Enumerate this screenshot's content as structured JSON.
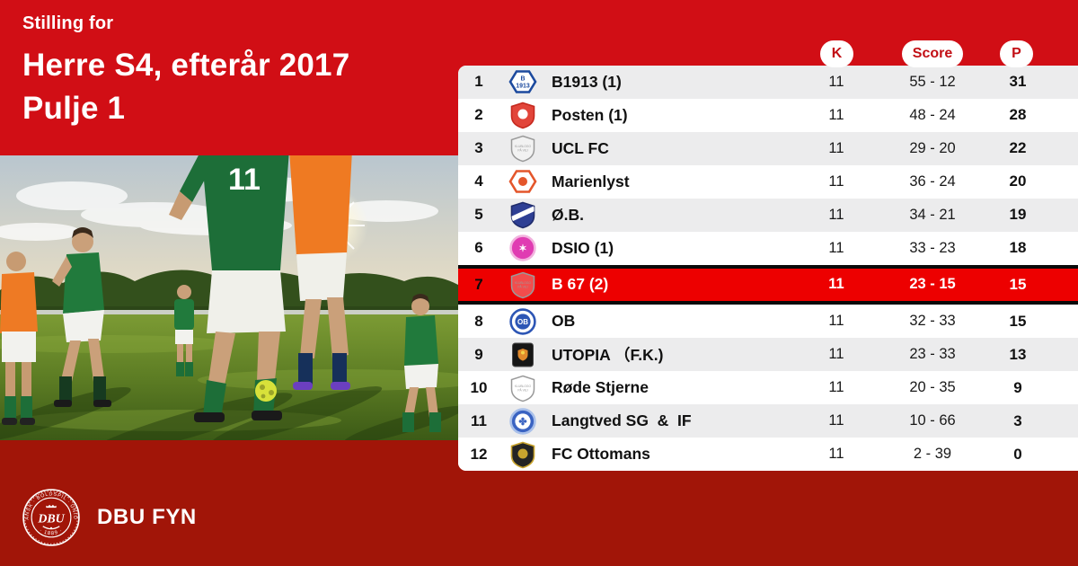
{
  "colors": {
    "red_top": "#d10e15",
    "red_bottom": "#a11508",
    "red_highlight": "#ed0000",
    "row_alt_gray": "#ececed",
    "pill_text_red": "#c20f15",
    "black_border": "#0a0a0a"
  },
  "header": {
    "eyebrow": "Stilling for",
    "title_line1": "Herre S4, efterår 2017",
    "title_line2": "Pulje 1"
  },
  "photo": {
    "jersey_number": "11"
  },
  "table": {
    "columns": {
      "k": "K",
      "score": "Score",
      "p": "P"
    },
    "rows": [
      {
        "pos": "1",
        "team": "B1913 (1)",
        "k": "11",
        "score": "55 - 12",
        "p": "31",
        "highlight": false,
        "logo": {
          "kind": "hex",
          "bg": "#ffffff",
          "border": "#1c4a9e",
          "lines": [
            "B",
            "1913"
          ],
          "text_color": "#1c4a9e"
        }
      },
      {
        "pos": "2",
        "team": "Posten (1)",
        "k": "11",
        "score": "48 - 24",
        "p": "28",
        "highlight": false,
        "logo": {
          "kind": "shield",
          "bg": "#e2453a",
          "border": "#c5291e",
          "dot": "#ffffff"
        }
      },
      {
        "pos": "3",
        "team": "UCL FC",
        "k": "11",
        "score": "29 - 20",
        "p": "22",
        "highlight": false,
        "logo": {
          "kind": "placeholder",
          "lines": [
            "KLUBLOGO",
            "PÅ VEJ"
          ]
        }
      },
      {
        "pos": "4",
        "team": "Marienlyst",
        "k": "11",
        "score": "36 - 24",
        "p": "20",
        "highlight": false,
        "logo": {
          "kind": "hex",
          "bg": "#ffffff",
          "border": "#e4562b",
          "dot": "#e4562b"
        }
      },
      {
        "pos": "5",
        "team": "Ø.B.",
        "k": "11",
        "score": "34 - 21",
        "p": "19",
        "highlight": false,
        "logo": {
          "kind": "shield",
          "bg": "#2e3f94",
          "border": "#202c6b",
          "stripe": "#ffffff"
        }
      },
      {
        "pos": "6",
        "team": "DSIO (1)",
        "k": "11",
        "score": "33 - 23",
        "p": "18",
        "highlight": false,
        "logo": {
          "kind": "circle",
          "bg": "#e03cb2",
          "ring": "#f2b3de",
          "glyph": "✶",
          "glyph_color": "#ffffff"
        }
      },
      {
        "pos": "7",
        "team": "B 67 (2)",
        "k": "11",
        "score": "23 - 15",
        "p": "15",
        "highlight": true,
        "logo": {
          "kind": "placeholder",
          "lines": [
            "KLUBLOGO",
            "PÅ VEJ"
          ]
        }
      },
      {
        "pos": "8",
        "team": "OB",
        "k": "11",
        "score": "32 - 33",
        "p": "15",
        "highlight": false,
        "logo": {
          "kind": "circle",
          "bg": "#ffffff",
          "ring": "#2d56b5",
          "inner": "#2d56b5",
          "glyph": "OB",
          "glyph_color": "#ffffff"
        }
      },
      {
        "pos": "9",
        "team": "UTOPIA （F.K.)",
        "k": "11",
        "score": "23 - 33",
        "p": "13",
        "highlight": false,
        "logo": {
          "kind": "square",
          "bg": "#161616",
          "emblem": "#e2892b"
        }
      },
      {
        "pos": "10",
        "team": "Røde Stjerne",
        "k": "11",
        "score": "20 - 35",
        "p": "9",
        "highlight": false,
        "logo": {
          "kind": "placeholder",
          "lines": [
            "KLUBLOGO",
            "PÅ VEJ"
          ]
        }
      },
      {
        "pos": "11",
        "team": "Langtved SG  &  IF",
        "k": "11",
        "score": "10 - 66",
        "p": "3",
        "highlight": false,
        "logo": {
          "kind": "circle",
          "bg": "#3a63c2",
          "ring": "#a9c0ea",
          "inner": "#ffffff",
          "glyph": "✤",
          "glyph_color": "#3a63c2"
        }
      },
      {
        "pos": "12",
        "team": "FC Ottomans",
        "k": "11",
        "score": "2 - 39",
        "p": "0",
        "highlight": false,
        "logo": {
          "kind": "shield",
          "bg": "#242424",
          "border": "#c9a42e",
          "dot": "#c9a42e"
        }
      }
    ]
  },
  "footer": {
    "brand": "DBU FYN",
    "crest_ring_text": "DANSK · BOLDSPIL · UNION",
    "crest_center": "DBU",
    "crest_year": "· 1889 ·"
  }
}
